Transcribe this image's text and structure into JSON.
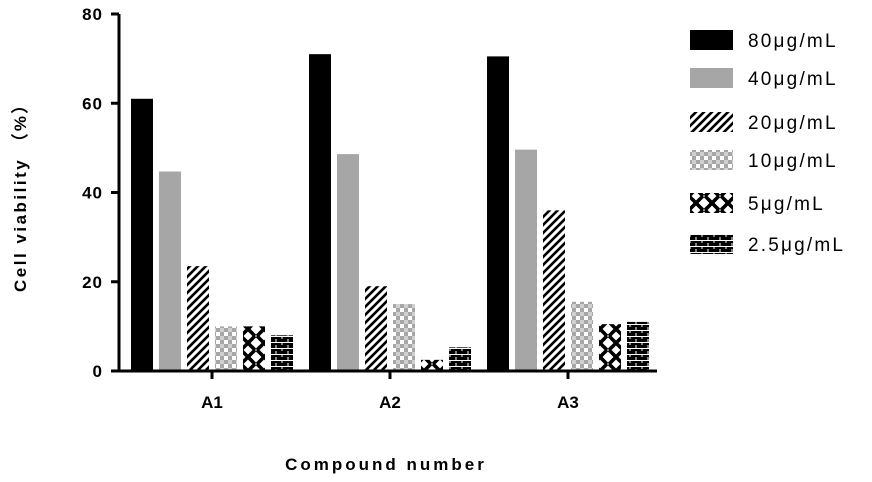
{
  "chart_data": {
    "type": "bar",
    "title": "",
    "xlabel": "Compound number",
    "ylabel": "Cell viability （%）",
    "ylim": [
      0,
      80
    ],
    "yticks": [
      0,
      20,
      40,
      60,
      80
    ],
    "grid": false,
    "legend_position": "right",
    "categories": [
      "A1",
      "A2",
      "A3"
    ],
    "series": [
      {
        "name": "80μg/mL",
        "pattern": "solid-black",
        "color": "#000000",
        "values": [
          61,
          71,
          70.5
        ]
      },
      {
        "name": "40μg/mL",
        "pattern": "solid-gray",
        "color": "#a6a6a6",
        "values": [
          44.7,
          48.6,
          49.6
        ]
      },
      {
        "name": "20μg/mL",
        "pattern": "diagonal-hatch",
        "color": "#000000",
        "values": [
          23.5,
          19,
          36
        ]
      },
      {
        "name": "10μg/mL",
        "pattern": "checker-gray",
        "color": "#a6a6a6",
        "values": [
          10,
          15,
          15.5
        ]
      },
      {
        "name": "5μg/mL",
        "pattern": "cross-chain",
        "color": "#000000",
        "values": [
          10,
          2.5,
          10.5
        ]
      },
      {
        "name": "2.5μg/mL",
        "pattern": "brick",
        "color": "#000000",
        "values": [
          8,
          5.3,
          11
        ]
      }
    ]
  }
}
